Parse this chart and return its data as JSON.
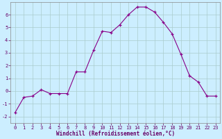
{
  "x": [
    0,
    1,
    2,
    3,
    4,
    5,
    6,
    7,
    8,
    9,
    10,
    11,
    12,
    13,
    14,
    15,
    16,
    17,
    18,
    19,
    20,
    21,
    22,
    23
  ],
  "y": [
    -1.7,
    -0.5,
    -0.4,
    0.1,
    -0.2,
    -0.2,
    -0.2,
    1.5,
    1.5,
    3.2,
    4.7,
    4.6,
    5.2,
    6.0,
    6.6,
    6.6,
    6.2,
    5.4,
    4.5,
    2.9,
    1.2,
    0.7,
    -0.4,
    -0.4
  ],
  "line_color": "#880088",
  "marker": "+",
  "marker_color": "#880088",
  "bg_color": "#cceeff",
  "grid_color": "#aacccc",
  "xlabel": "Windchill (Refroidissement éolien,°C)",
  "xlim_min": -0.5,
  "xlim_max": 23.5,
  "ylim_min": -2.5,
  "ylim_max": 7.0,
  "yticks": [
    -2,
    -1,
    0,
    1,
    2,
    3,
    4,
    5,
    6
  ],
  "xticks": [
    0,
    1,
    2,
    3,
    4,
    5,
    6,
    7,
    8,
    9,
    10,
    11,
    12,
    13,
    14,
    15,
    16,
    17,
    18,
    19,
    20,
    21,
    22,
    23
  ],
  "xtick_labels": [
    "0",
    "1",
    "2",
    "3",
    "4",
    "5",
    "6",
    "7",
    "8",
    "9",
    "10",
    "11",
    "12",
    "13",
    "14",
    "15",
    "16",
    "17",
    "18",
    "19",
    "20",
    "21",
    "22",
    "23"
  ],
  "tick_color": "#660066",
  "label_fontsize": 5.5,
  "tick_fontsize": 5.0
}
